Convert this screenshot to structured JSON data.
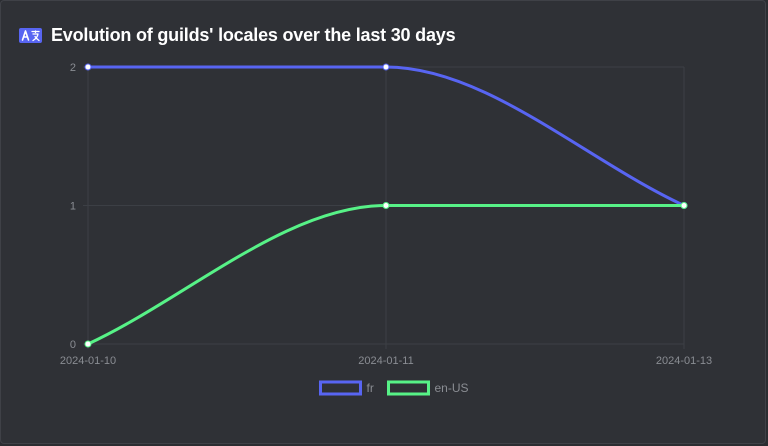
{
  "header": {
    "title": "Evolution of guilds' locales over the last 30 days",
    "icon": "translate-icon"
  },
  "colors": {
    "background": "#2f3136",
    "grid": "#3c3f45",
    "tick_text": "#8a8d93",
    "accent": "#5865f2"
  },
  "chart_data": {
    "type": "line",
    "title": "Evolution of guilds' locales over the last 30 days",
    "categories": [
      "2024-01-10",
      "2024-01-11",
      "2024-01-13"
    ],
    "series": [
      {
        "name": "fr",
        "values": [
          2,
          2,
          1
        ],
        "color": "#5865f2"
      },
      {
        "name": "en-US",
        "values": [
          0,
          1,
          1
        ],
        "color": "#57f287"
      }
    ],
    "ylim": [
      0,
      2
    ],
    "yticks": [
      0,
      1,
      2
    ],
    "smooth": true,
    "grid": true,
    "legend": "bottom-center"
  }
}
